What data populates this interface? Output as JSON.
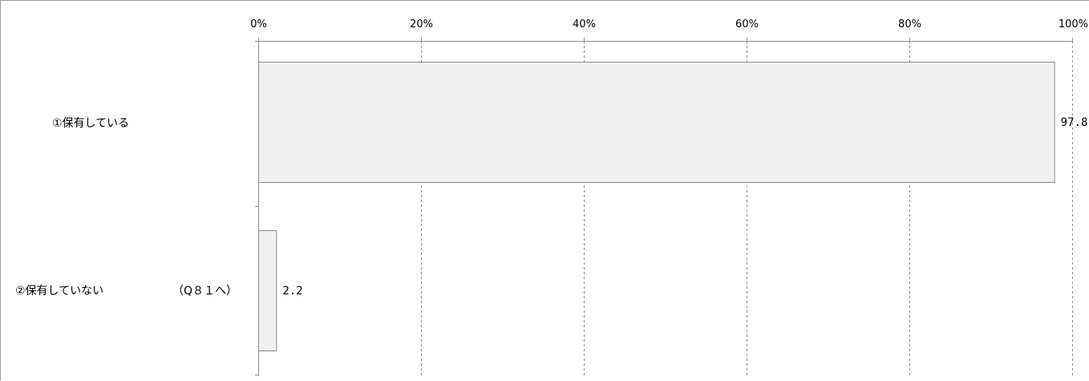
{
  "chart_data": {
    "type": "bar",
    "orientation": "horizontal",
    "categories": [
      {
        "label": "①保有している",
        "note": ""
      },
      {
        "label": "②保有していない",
        "note": "（Q８１へ）"
      }
    ],
    "values": [
      97.8,
      2.2
    ],
    "value_labels": [
      "97.8",
      "2.2"
    ],
    "xlim": [
      0,
      100
    ],
    "x_ticks": [
      0,
      20,
      40,
      60,
      80,
      100
    ],
    "x_tick_labels": [
      "0%",
      "20%",
      "40%",
      "60%",
      "80%",
      "100%"
    ],
    "title": "",
    "xlabel": "",
    "ylabel": "",
    "grid": "vertical-dashed",
    "bar_fill": "#f0f0f0",
    "bar_stroke": "#8c8c8c",
    "axis_color": "#8c8c8c"
  }
}
